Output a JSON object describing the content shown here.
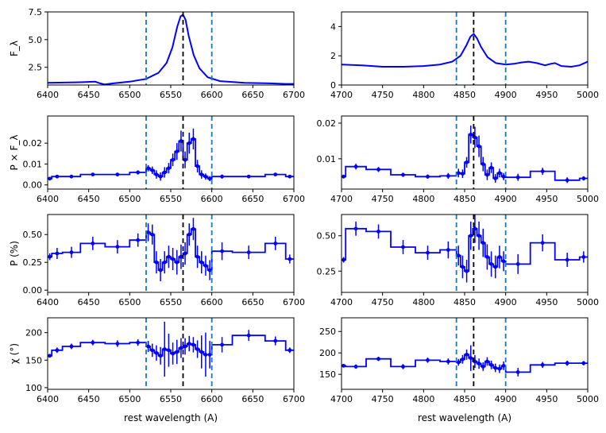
{
  "colors": {
    "curve": "#0000ff",
    "guide_outer": "#1f77b4",
    "guide_center": "#000000",
    "axis": "#000000"
  },
  "xlabels": {
    "left": "rest wavelength (A)",
    "right": "rest wavelength (A)"
  },
  "chart_data": [
    {
      "id": "flux_ha",
      "type": "line",
      "ylabel": "F_λ",
      "xlim": [
        6400,
        6700
      ],
      "ylim": [
        0.9,
        7.5
      ],
      "xticks": [
        6400,
        6450,
        6500,
        6550,
        6600,
        6650,
        6700
      ],
      "yticks": [
        2.5,
        5.0,
        7.5
      ],
      "ytick_labels": [
        "2.5",
        "5.0",
        "7.5"
      ],
      "vlines": {
        "outer": [
          6520,
          6600
        ],
        "center": 6565
      },
      "series": [
        {
          "name": "F_lambda",
          "x": [
            6400,
            6440,
            6458,
            6464,
            6470,
            6480,
            6500,
            6520,
            6535,
            6545,
            6552,
            6558,
            6562,
            6565,
            6568,
            6572,
            6578,
            6585,
            6595,
            6610,
            6640,
            6670,
            6690,
            6700
          ],
          "y": [
            1.1,
            1.15,
            1.2,
            1.05,
            0.95,
            1.05,
            1.2,
            1.45,
            2.0,
            2.9,
            4.3,
            6.2,
            7.1,
            7.25,
            6.8,
            5.3,
            3.6,
            2.4,
            1.6,
            1.25,
            1.1,
            1.05,
            1.0,
            1.0
          ]
        }
      ]
    },
    {
      "id": "flux_hb",
      "type": "line",
      "ylabel": "",
      "xlim": [
        4700,
        5000
      ],
      "ylim": [
        0,
        5
      ],
      "xticks": [
        4700,
        4750,
        4800,
        4850,
        4900,
        4950,
        5000
      ],
      "yticks": [
        0,
        2,
        4
      ],
      "ytick_labels": [
        "0",
        "2",
        "4"
      ],
      "vlines": {
        "outer": [
          4840,
          4900
        ],
        "center": 4861
      },
      "series": [
        {
          "name": "F_lambda",
          "x": [
            4700,
            4725,
            4750,
            4775,
            4800,
            4820,
            4835,
            4845,
            4852,
            4857,
            4861,
            4865,
            4870,
            4878,
            4888,
            4900,
            4910,
            4920,
            4928,
            4938,
            4948,
            4955,
            4960,
            4968,
            4980,
            4990,
            5000
          ],
          "y": [
            1.4,
            1.35,
            1.25,
            1.25,
            1.3,
            1.4,
            1.6,
            2.0,
            2.7,
            3.3,
            3.5,
            3.2,
            2.6,
            1.9,
            1.5,
            1.4,
            1.45,
            1.55,
            1.6,
            1.5,
            1.35,
            1.45,
            1.5,
            1.3,
            1.25,
            1.35,
            1.6
          ]
        }
      ]
    },
    {
      "id": "pf_ha",
      "type": "binned_step",
      "ylabel": "P × F_λ",
      "xlim": [
        6400,
        6700
      ],
      "ylim": [
        -0.002,
        0.033
      ],
      "xticks": [
        6400,
        6450,
        6500,
        6550,
        6600,
        6650,
        6700
      ],
      "yticks": [
        0.0,
        0.01,
        0.02
      ],
      "ytick_labels": [
        "0.00",
        "0.01",
        "0.02"
      ],
      "vlines": {
        "outer": [
          6520,
          6600
        ],
        "center": 6565
      },
      "edges": [
        6400,
        6405,
        6418,
        6440,
        6470,
        6500,
        6520,
        6525,
        6530,
        6535,
        6540,
        6545,
        6550,
        6555,
        6560,
        6565,
        6570,
        6575,
        6580,
        6585,
        6590,
        6595,
        6600,
        6625,
        6665,
        6690,
        6700
      ],
      "values": [
        0.003,
        0.004,
        0.004,
        0.005,
        0.005,
        0.006,
        0.008,
        0.007,
        0.005,
        0.004,
        0.006,
        0.008,
        0.012,
        0.016,
        0.021,
        0.012,
        0.02,
        0.022,
        0.009,
        0.005,
        0.004,
        0.003,
        0.004,
        0.004,
        0.005,
        0.004
      ],
      "errors": [
        0.0005,
        0.0008,
        0.0008,
        0.0008,
        0.0008,
        0.001,
        0.0015,
        0.0018,
        0.002,
        0.002,
        0.0025,
        0.0025,
        0.003,
        0.004,
        0.005,
        0.004,
        0.005,
        0.005,
        0.003,
        0.002,
        0.0015,
        0.0012,
        0.001,
        0.0008,
        0.0008,
        0.0005
      ]
    },
    {
      "id": "pf_hb",
      "type": "binned_step",
      "ylabel": "",
      "xlim": [
        4700,
        5000
      ],
      "ylim": [
        0.0015,
        0.022
      ],
      "xticks": [
        4700,
        4750,
        4800,
        4850,
        4900,
        4950,
        5000
      ],
      "yticks": [
        0.01,
        0.02
      ],
      "ytick_labels": [
        "0.01",
        "0.02"
      ],
      "vlines": {
        "outer": [
          4840,
          4900
        ],
        "center": 4861
      },
      "edges": [
        4700,
        4705,
        4730,
        4760,
        4790,
        4820,
        4840,
        4845,
        4850,
        4855,
        4860,
        4865,
        4870,
        4875,
        4880,
        4885,
        4890,
        4895,
        4900,
        4930,
        4960,
        4990,
        5000
      ],
      "values": [
        0.005,
        0.0078,
        0.007,
        0.0055,
        0.005,
        0.0052,
        0.006,
        0.0058,
        0.009,
        0.0168,
        0.016,
        0.0135,
        0.0085,
        0.0055,
        0.0075,
        0.0045,
        0.006,
        0.005,
        0.0048,
        0.0065,
        0.004,
        0.0045
      ],
      "errors": [
        0.0004,
        0.0008,
        0.0007,
        0.0006,
        0.0006,
        0.0008,
        0.0012,
        0.0012,
        0.0015,
        0.0025,
        0.003,
        0.003,
        0.002,
        0.0015,
        0.0015,
        0.0012,
        0.0012,
        0.001,
        0.001,
        0.001,
        0.0008,
        0.0006
      ]
    },
    {
      "id": "p_ha",
      "type": "binned_step",
      "ylabel": "P (%)",
      "xlim": [
        6400,
        6700
      ],
      "ylim": [
        -0.02,
        0.68
      ],
      "xticks": [
        6400,
        6450,
        6500,
        6550,
        6600,
        6650,
        6700
      ],
      "yticks": [
        0.0,
        0.25,
        0.5
      ],
      "ytick_labels": [
        "0.00",
        "0.25",
        "0.50"
      ],
      "vlines": {
        "outer": [
          6520,
          6600
        ],
        "center": 6565
      },
      "edges": [
        6400,
        6405,
        6418,
        6440,
        6470,
        6500,
        6520,
        6525,
        6530,
        6535,
        6540,
        6545,
        6550,
        6555,
        6560,
        6565,
        6570,
        6575,
        6580,
        6585,
        6590,
        6595,
        6600,
        6625,
        6665,
        6690,
        6700
      ],
      "values": [
        0.3,
        0.33,
        0.34,
        0.42,
        0.39,
        0.45,
        0.52,
        0.5,
        0.25,
        0.18,
        0.25,
        0.3,
        0.28,
        0.25,
        0.3,
        0.33,
        0.5,
        0.55,
        0.3,
        0.25,
        0.22,
        0.18,
        0.35,
        0.34,
        0.42,
        0.28
      ],
      "errors": [
        0.03,
        0.05,
        0.05,
        0.06,
        0.06,
        0.06,
        0.08,
        0.09,
        0.1,
        0.1,
        0.1,
        0.1,
        0.1,
        0.11,
        0.11,
        0.1,
        0.1,
        0.1,
        0.1,
        0.1,
        0.09,
        0.09,
        0.08,
        0.06,
        0.06,
        0.04
      ]
    },
    {
      "id": "p_hb",
      "type": "binned_step",
      "ylabel": "",
      "xlim": [
        4700,
        5000
      ],
      "ylim": [
        0.1,
        0.65
      ],
      "xticks": [
        4700,
        4750,
        4800,
        4850,
        4900,
        4950,
        5000
      ],
      "yticks": [
        0.25,
        0.5
      ],
      "ytick_labels": [
        "0.25",
        "0.50"
      ],
      "vlines": {
        "outer": [
          4840,
          4900
        ],
        "center": 4861
      },
      "edges": [
        4700,
        4705,
        4730,
        4760,
        4790,
        4820,
        4840,
        4845,
        4850,
        4855,
        4860,
        4865,
        4870,
        4875,
        4880,
        4885,
        4890,
        4895,
        4900,
        4930,
        4960,
        4990,
        5000
      ],
      "values": [
        0.33,
        0.55,
        0.53,
        0.42,
        0.38,
        0.4,
        0.36,
        0.28,
        0.25,
        0.5,
        0.55,
        0.5,
        0.45,
        0.35,
        0.3,
        0.28,
        0.35,
        0.32,
        0.3,
        0.45,
        0.33,
        0.35
      ],
      "errors": [
        0.02,
        0.05,
        0.05,
        0.05,
        0.05,
        0.06,
        0.07,
        0.08,
        0.08,
        0.1,
        0.1,
        0.1,
        0.1,
        0.09,
        0.09,
        0.08,
        0.08,
        0.07,
        0.07,
        0.06,
        0.05,
        0.04
      ]
    },
    {
      "id": "chi_ha",
      "type": "binned_step",
      "ylabel": "χ (°)",
      "xlim": [
        6400,
        6700
      ],
      "ylim": [
        97,
        227
      ],
      "xticks": [
        6400,
        6450,
        6500,
        6550,
        6600,
        6650,
        6700
      ],
      "yticks": [
        100,
        150,
        200
      ],
      "ytick_labels": [
        "100",
        "150",
        "200"
      ],
      "vlines": {
        "outer": [
          6520,
          6600
        ],
        "center": 6565
      },
      "edges": [
        6400,
        6405,
        6418,
        6440,
        6470,
        6500,
        6520,
        6525,
        6530,
        6535,
        6540,
        6545,
        6550,
        6555,
        6560,
        6565,
        6570,
        6575,
        6580,
        6585,
        6590,
        6595,
        6600,
        6625,
        6665,
        6690,
        6700
      ],
      "values": [
        158,
        168,
        175,
        182,
        180,
        182,
        175,
        168,
        163,
        158,
        170,
        168,
        162,
        165,
        172,
        175,
        180,
        178,
        170,
        165,
        160,
        160,
        178,
        195,
        185,
        168
      ],
      "errors": [
        3,
        5,
        5,
        5,
        6,
        6,
        10,
        12,
        14,
        16,
        50,
        30,
        20,
        22,
        18,
        15,
        14,
        14,
        16,
        30,
        40,
        25,
        14,
        10,
        8,
        5
      ]
    },
    {
      "id": "chi_hb",
      "type": "binned_step",
      "ylabel": "",
      "xlim": [
        4700,
        5000
      ],
      "ylim": [
        115,
        282
      ],
      "xticks": [
        4700,
        4750,
        4800,
        4850,
        4900,
        4950,
        5000
      ],
      "yticks": [
        150,
        200,
        250
      ],
      "ytick_labels": [
        "150",
        "200",
        "250"
      ],
      "vlines": {
        "outer": [
          4840,
          4900
        ],
        "center": 4861
      },
      "edges": [
        4700,
        4705,
        4730,
        4760,
        4790,
        4820,
        4840,
        4845,
        4850,
        4855,
        4860,
        4865,
        4870,
        4875,
        4880,
        4885,
        4890,
        4895,
        4900,
        4930,
        4960,
        4990,
        5000
      ],
      "values": [
        170,
        168,
        186,
        168,
        183,
        180,
        178,
        185,
        196,
        188,
        180,
        175,
        168,
        180,
        172,
        165,
        163,
        170,
        155,
        172,
        176,
        176
      ],
      "errors": [
        3,
        5,
        5,
        6,
        6,
        7,
        8,
        10,
        12,
        30,
        15,
        12,
        10,
        10,
        10,
        10,
        10,
        10,
        10,
        7,
        6,
        5
      ]
    }
  ]
}
